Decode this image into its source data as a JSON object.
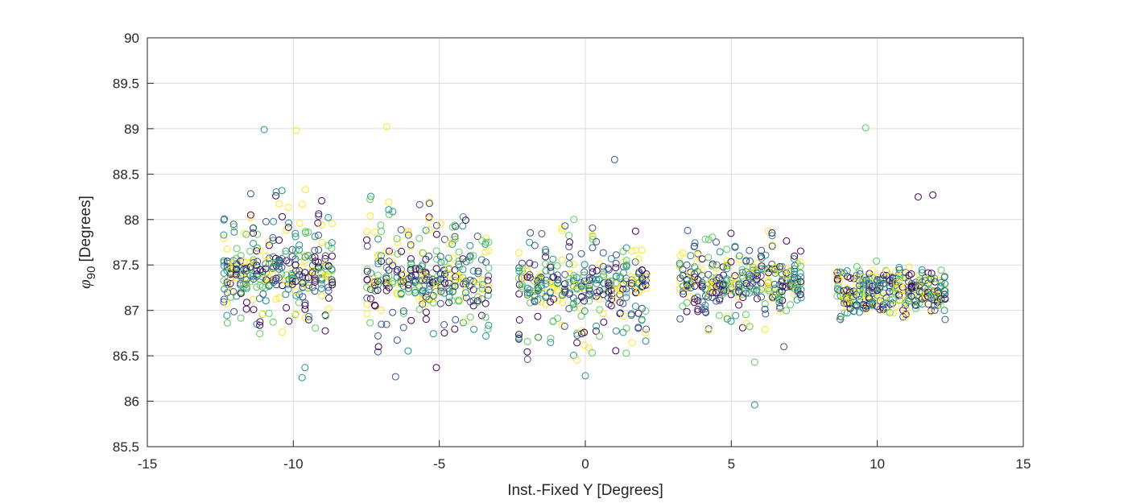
{
  "chart_data": {
    "type": "scatter",
    "title": "",
    "xlabel": "Inst.-Fixed Y [Degrees]",
    "ylabel_symbol": "φ",
    "ylabel_subscript": "90",
    "ylabel_unit": "[Degrees]",
    "xlim": [
      -15,
      15
    ],
    "ylim": [
      85.5,
      90
    ],
    "xticks": [
      "-15",
      "-10",
      "-5",
      "0",
      "5",
      "10",
      "15"
    ],
    "yticks": [
      "85.5",
      "86",
      "86.5",
      "87",
      "87.5",
      "88",
      "88.5",
      "89",
      "89.5",
      "90"
    ],
    "grid": true,
    "legend": "none",
    "marker": "open-circle",
    "colormap": [
      "#440154",
      "#3b528b",
      "#21908d",
      "#5dc963",
      "#fde725"
    ],
    "clusters": [
      {
        "x_range": [
          -12.4,
          -8.6
        ],
        "y_center": 87.4,
        "y_spread": [
          86.6,
          88.4
        ]
      },
      {
        "x_range": [
          -7.5,
          -3.2
        ],
        "y_center": 87.3,
        "y_spread": [
          86.5,
          88.4
        ]
      },
      {
        "x_range": [
          -2.3,
          2.2
        ],
        "y_center": 87.3,
        "y_spread": [
          86.4,
          88.1
        ]
      },
      {
        "x_range": [
          3.2,
          7.5
        ],
        "y_center": 87.3,
        "y_spread": [
          86.7,
          88.0
        ]
      },
      {
        "x_range": [
          8.6,
          12.4
        ],
        "y_center": 87.2,
        "y_spread": [
          86.9,
          87.6
        ]
      }
    ],
    "outliers": [
      {
        "x": -6.8,
        "y": 89.02
      },
      {
        "x": 9.6,
        "y": 89.01
      },
      {
        "x": -11.0,
        "y": 88.99
      },
      {
        "x": -9.9,
        "y": 88.98
      },
      {
        "x": 1.0,
        "y": 88.66
      },
      {
        "x": 11.4,
        "y": 88.25
      },
      {
        "x": 11.9,
        "y": 88.27
      },
      {
        "x": 5.8,
        "y": 85.96
      },
      {
        "x": 5.8,
        "y": 86.43
      },
      {
        "x": -9.7,
        "y": 86.26
      },
      {
        "x": -9.6,
        "y": 86.37
      },
      {
        "x": -6.5,
        "y": 86.27
      },
      {
        "x": -5.1,
        "y": 86.37
      },
      {
        "x": 0.0,
        "y": 86.28
      },
      {
        "x": 6.8,
        "y": 86.6
      }
    ]
  }
}
